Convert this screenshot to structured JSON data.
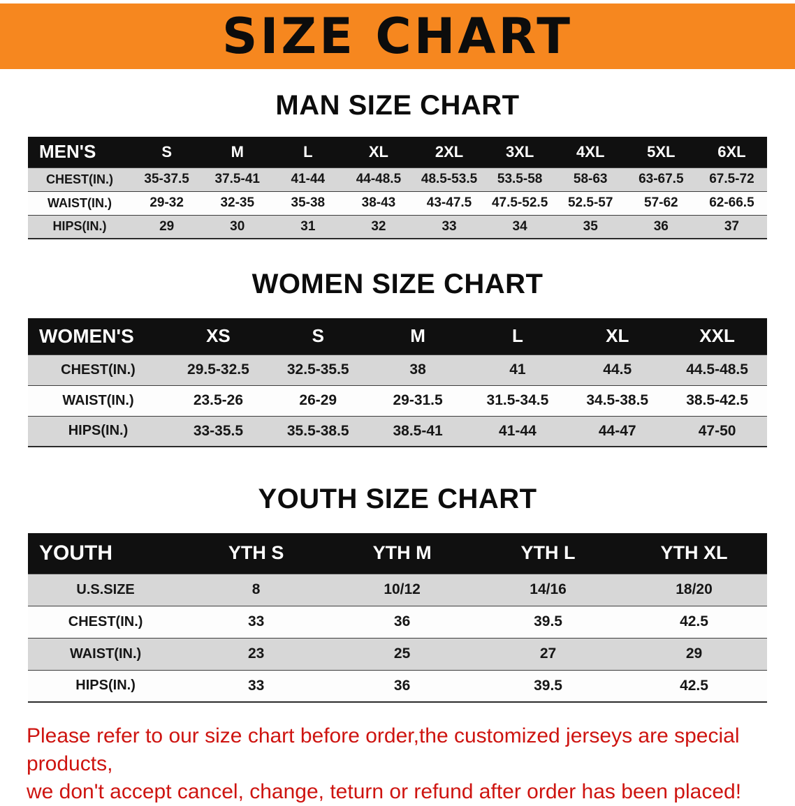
{
  "banner": {
    "title": "SIZE CHART"
  },
  "sections": [
    {
      "heading": "MAN SIZE CHART",
      "table": {
        "header": [
          "MEN'S",
          "S",
          "M",
          "L",
          "XL",
          "2XL",
          "3XL",
          "4XL",
          "5XL",
          "6XL"
        ],
        "rows": [
          [
            "CHEST(IN.)",
            "35-37.5",
            "37.5-41",
            "41-44",
            "44-48.5",
            "48.5-53.5",
            "53.5-58",
            "58-63",
            "63-67.5",
            "67.5-72"
          ],
          [
            "WAIST(IN.)",
            "29-32",
            "32-35",
            "35-38",
            "38-43",
            "43-47.5",
            "47.5-52.5",
            "52.5-57",
            "57-62",
            "62-66.5"
          ],
          [
            "HIPS(IN.)",
            "29",
            "30",
            "31",
            "32",
            "33",
            "34",
            "35",
            "36",
            "37"
          ]
        ]
      }
    },
    {
      "heading": "WOMEN SIZE CHART",
      "table": {
        "header": [
          "WOMEN'S",
          "XS",
          "S",
          "M",
          "L",
          "XL",
          "XXL"
        ],
        "rows": [
          [
            "CHEST(IN.)",
            "29.5-32.5",
            "32.5-35.5",
            "38",
            "41",
            "44.5",
            "44.5-48.5"
          ],
          [
            "WAIST(IN.)",
            "23.5-26",
            "26-29",
            "29-31.5",
            "31.5-34.5",
            "34.5-38.5",
            "38.5-42.5"
          ],
          [
            "HIPS(IN.)",
            "33-35.5",
            "35.5-38.5",
            "38.5-41",
            "41-44",
            "44-47",
            "47-50"
          ]
        ]
      }
    },
    {
      "heading": "YOUTH SIZE CHART",
      "table": {
        "header": [
          "YOUTH",
          "YTH S",
          "YTH M",
          "YTH L",
          "YTH XL"
        ],
        "rows": [
          [
            "U.S.SIZE",
            "8",
            "10/12",
            "14/16",
            "18/20"
          ],
          [
            "CHEST(IN.)",
            "33",
            "36",
            "39.5",
            "42.5"
          ],
          [
            "WAIST(IN.)",
            "23",
            "25",
            "27",
            "29"
          ],
          [
            "HIPS(IN.)",
            "33",
            "36",
            "39.5",
            "42.5"
          ]
        ]
      }
    }
  ],
  "footer": {
    "line1": "Please refer to our size chart before order,the customized jerseys are special products,",
    "line2": "we don't accept cancel, change, teturn or refund after order has been placed!"
  },
  "colors": {
    "banner_bg": "#f6871f",
    "header_bg": "#101010",
    "row_stripe": "#d7d7d7",
    "footer_text": "#ce1410"
  }
}
